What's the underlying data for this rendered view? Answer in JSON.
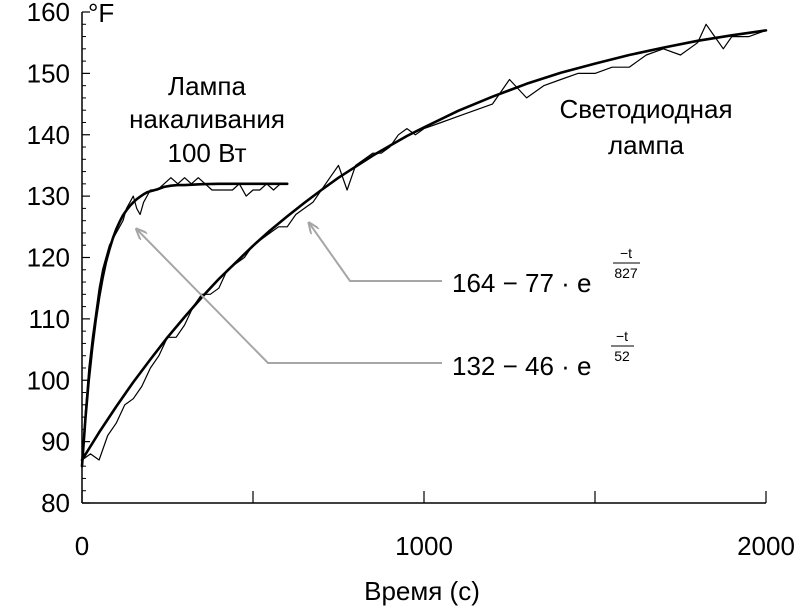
{
  "chart_data": {
    "type": "line",
    "title": "",
    "xlabel": "Время (с)",
    "ylabel": "",
    "y_unit": "°F",
    "xlim": [
      0,
      2000
    ],
    "ylim": [
      80,
      160
    ],
    "x_ticks": [
      0,
      1000,
      2000
    ],
    "x_tick_labels": [
      "0",
      "1000",
      "2000"
    ],
    "y_ticks": [
      80,
      90,
      100,
      110,
      120,
      130,
      140,
      150,
      160
    ],
    "y_tick_labels": [
      "80",
      "90",
      "100",
      "110",
      "120",
      "130",
      "140",
      "150",
      "160"
    ],
    "grid": false,
    "series": [
      {
        "kind": "measured",
        "name": "Лампа накаливания 100 Вт",
        "color": "#000000",
        "x": [
          0,
          10,
          20,
          30,
          40,
          50,
          60,
          70,
          80,
          90,
          100,
          110,
          120,
          130,
          140,
          150,
          160,
          170,
          180,
          200,
          220,
          240,
          260,
          280,
          300,
          320,
          340,
          360,
          380,
          400,
          420,
          440,
          460,
          480,
          500,
          520,
          540,
          560,
          580,
          600
        ],
        "y": [
          86,
          95,
          102,
          107,
          111,
          115,
          118,
          120,
          122,
          123,
          124,
          125,
          126,
          128,
          129,
          130,
          128,
          127,
          129,
          131,
          131,
          132,
          133,
          132,
          133,
          132,
          133,
          132,
          131,
          131,
          131,
          131,
          132,
          130,
          131,
          131,
          132,
          131,
          132,
          132
        ]
      },
      {
        "kind": "fit",
        "name": "132 − 46·e^(−t/52)",
        "color": "#000000",
        "x": [
          0,
          10,
          20,
          30,
          40,
          50,
          60,
          70,
          80,
          90,
          100,
          110,
          120,
          130,
          140,
          150,
          160,
          170,
          180,
          190,
          200,
          220,
          240,
          260,
          280,
          300,
          350,
          400,
          450,
          500,
          550,
          600
        ],
        "y": [
          86,
          93.7,
          100.1,
          105.4,
          109.8,
          113.5,
          116.6,
          119.2,
          121.3,
          123.1,
          124.6,
          125.8,
          126.9,
          127.7,
          128.4,
          129.0,
          129.5,
          129.9,
          130.3,
          130.6,
          130.8,
          131.1,
          131.5,
          131.7,
          131.8,
          131.8,
          131.95,
          132.0,
          132.0,
          132.0,
          132.0,
          132.0
        ]
      },
      {
        "kind": "measured",
        "name": "Светодиодная лампа",
        "color": "#000000",
        "x": [
          0,
          25,
          50,
          75,
          100,
          125,
          150,
          175,
          200,
          225,
          250,
          275,
          300,
          325,
          350,
          375,
          400,
          425,
          450,
          475,
          500,
          525,
          550,
          575,
          600,
          625,
          650,
          675,
          700,
          725,
          750,
          775,
          800,
          825,
          850,
          875,
          900,
          925,
          950,
          975,
          1000,
          1050,
          1100,
          1150,
          1200,
          1250,
          1300,
          1350,
          1400,
          1450,
          1500,
          1550,
          1600,
          1650,
          1700,
          1750,
          1800,
          1825,
          1850,
          1875,
          1900,
          1950,
          2000
        ],
        "y": [
          87,
          88,
          87,
          91,
          93,
          96,
          97,
          99,
          102,
          104,
          107,
          107,
          109,
          112,
          114,
          114,
          115,
          118,
          119,
          120,
          122,
          123,
          124,
          125,
          125,
          127,
          128,
          129,
          131,
          133,
          135,
          131,
          135,
          136,
          137,
          137,
          138,
          140,
          141,
          140,
          141,
          142,
          143,
          144,
          145,
          149,
          146,
          148,
          149,
          150,
          150,
          151,
          151,
          153,
          154,
          153,
          155,
          158,
          156,
          154,
          156,
          156,
          157
        ]
      },
      {
        "kind": "fit",
        "name": "164 − 77·e^(−t/827)",
        "color": "#000000",
        "x": [
          0,
          50,
          100,
          150,
          200,
          250,
          300,
          350,
          400,
          450,
          500,
          550,
          600,
          650,
          700,
          750,
          800,
          850,
          900,
          950,
          1000,
          1100,
          1200,
          1300,
          1400,
          1500,
          1600,
          1700,
          1800,
          1900,
          2000
        ],
        "y": [
          87,
          91.5,
          95.7,
          99.7,
          103.4,
          107.0,
          110.3,
          113.5,
          116.5,
          119.2,
          121.9,
          124.4,
          126.7,
          128.9,
          131.0,
          133.0,
          134.8,
          136.6,
          138.2,
          139.8,
          141.2,
          143.9,
          146.2,
          148.3,
          150.1,
          151.6,
          153.0,
          154.2,
          155.3,
          156.2,
          157.0
        ]
      }
    ],
    "annotations": {
      "incandescent_label_lines": [
        "Лампа",
        "накаливания",
        "100 Вт"
      ],
      "led_label_lines": [
        "Светодиодная",
        "лампа"
      ],
      "led_formula": {
        "base": "164 − 77 · e",
        "numerator": "−t",
        "denominator": "827"
      },
      "incandescent_formula": {
        "base": "132 − 46 · e",
        "numerator": "−t",
        "denominator": "52"
      },
      "arrow_color": "#a6a6a6",
      "led_arrow_target": {
        "x": 640,
        "y": 126
      },
      "incandescent_arrow_target": {
        "x": 150,
        "y": 125
      }
    }
  }
}
